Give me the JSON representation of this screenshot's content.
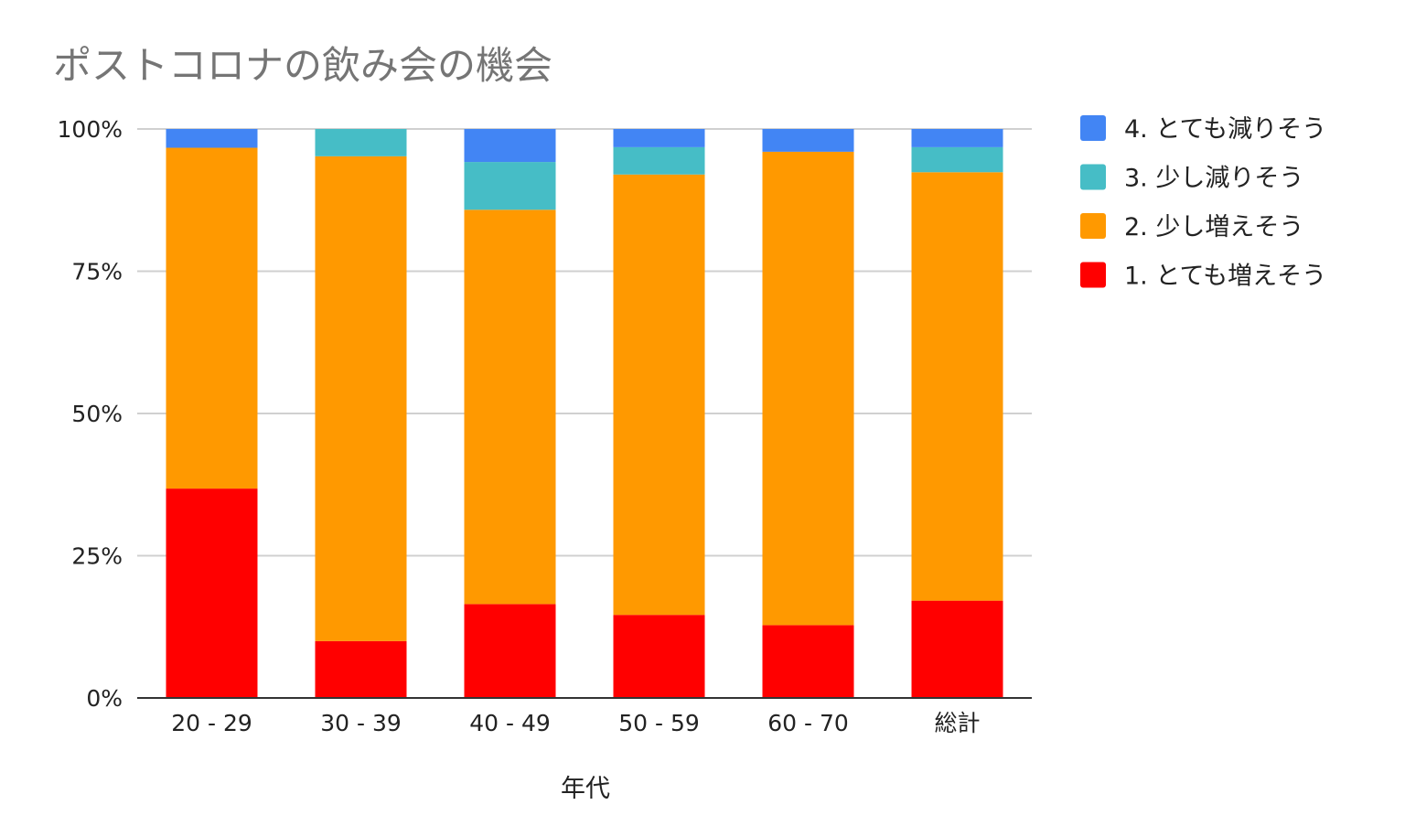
{
  "chart_data": {
    "type": "bar",
    "stacked": "percent",
    "title": "ポストコロナの飲み会の機会",
    "xlabel": "年代",
    "ylabel": "",
    "ylim": [
      0,
      100
    ],
    "y_ticks": [
      "0%",
      "25%",
      "50%",
      "75%",
      "100%"
    ],
    "categories": [
      "20 - 29",
      "30 - 39",
      "40 - 49",
      "50 - 59",
      "60 - 70",
      "総計"
    ],
    "series": [
      {
        "name": "1. とても増えそう",
        "color": "#ff0000",
        "values": [
          36.8,
          10.0,
          16.5,
          14.6,
          12.8,
          17.1
        ]
      },
      {
        "name": "2. 少し増えそう",
        "color": "#ff9900",
        "values": [
          59.9,
          85.2,
          69.3,
          77.4,
          83.2,
          75.3
        ]
      },
      {
        "name": "3. 少し減りそう",
        "color": "#46bdc6",
        "values": [
          0.0,
          4.8,
          8.4,
          4.8,
          0.0,
          4.4
        ]
      },
      {
        "name": "4. とても減りそう",
        "color": "#4285f4",
        "values": [
          3.3,
          0.0,
          5.8,
          3.2,
          4.0,
          3.2
        ]
      }
    ],
    "legend": {
      "position": "right",
      "order": [
        3,
        2,
        1,
        0
      ],
      "labels": [
        "4. とても減りそう",
        "3. 少し減りそう",
        "2. 少し増えそう",
        "1. とても増えそう"
      ]
    },
    "gridlines": true,
    "colors": {
      "grid": "#d0d0d0",
      "axis": "#333333",
      "title": "#757575",
      "text": "#222222"
    }
  }
}
